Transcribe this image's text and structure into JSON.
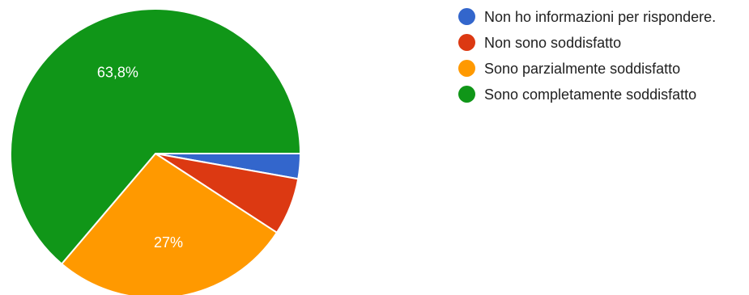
{
  "chart_data": {
    "type": "pie",
    "categories": [
      "Non ho informazioni per rispondere.",
      "Non sono soddisfatto",
      "Sono parzialmente soddisfatto",
      "Sono completamente soddisfatto"
    ],
    "values": [
      2.8,
      6.4,
      27,
      63.8
    ],
    "data_labels": [
      "",
      "",
      "27%",
      "63,8%"
    ],
    "colors": [
      "#3366cc",
      "#dc3912",
      "#ff9900",
      "#109618"
    ],
    "legend_position": "right",
    "start_angle": "east, clockwise"
  }
}
